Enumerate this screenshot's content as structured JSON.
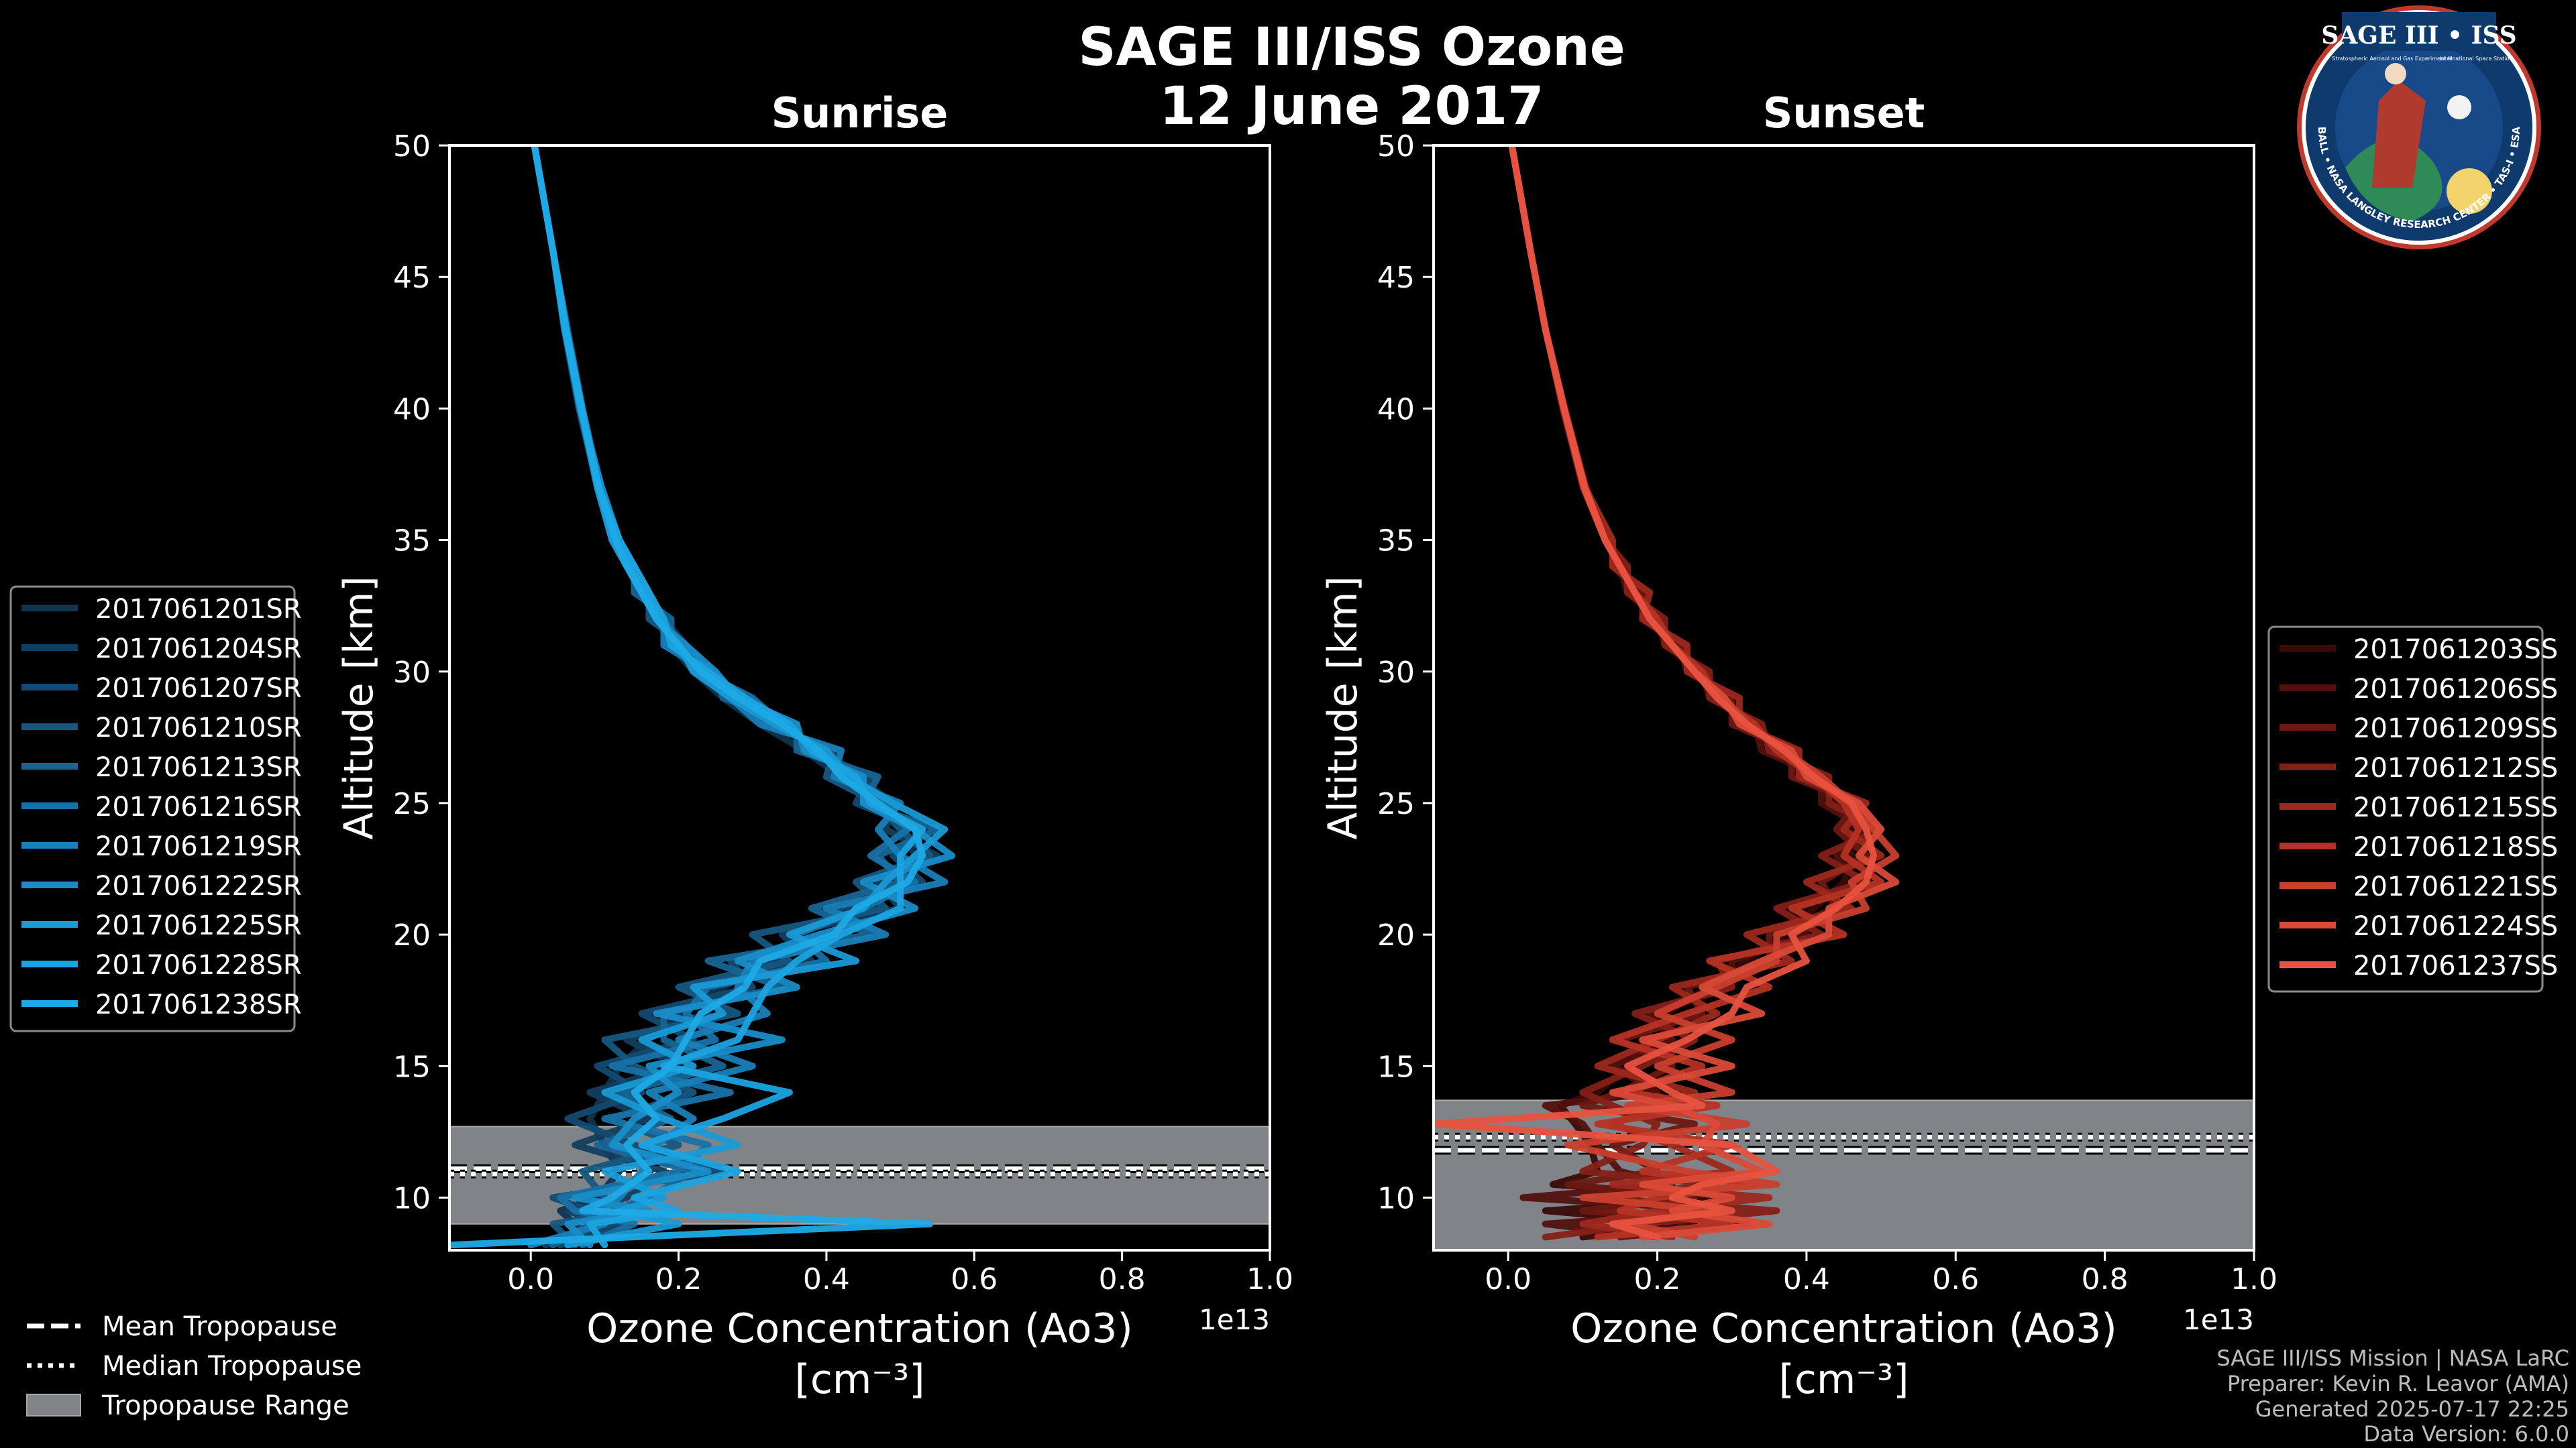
{
  "figure": {
    "title_line1": "SAGE III/ISS Ozone",
    "title_line2": "12 June 2017",
    "footer": [
      "SAGE III/ISS Mission | NASA LaRC",
      "Preparer: Kevin R. Leavor (AMA)",
      "Generated 2025-07-17 22:25",
      "Data Version: 6.0.0"
    ],
    "logo": {
      "title": "SAGE III • ISS",
      "subtitle": "Stratospheric Aerosol and Gas Experiment III",
      "right_text": "International Space Station",
      "ring_text": "BALL • NASA LANGLEY RESEARCH CENTER • TAS-I • ESA"
    },
    "common_legend": [
      {
        "label": "Mean Tropopause",
        "style": "dashed"
      },
      {
        "label": "Median Tropopause",
        "style": "dotted"
      },
      {
        "label": "Tropopause Range",
        "style": "patch"
      }
    ],
    "colors": {
      "background": "#000000",
      "tropopause_band": "#808387",
      "sunrise_base": "#1a9ad6",
      "sunset_base": "#e8523f"
    }
  },
  "chart_data": [
    {
      "type": "line",
      "title": "Sunrise",
      "xlabel": "Ozone Concentration (Ao3)",
      "xlabel_units": "[cm⁻³]",
      "x_offset_label": "1e13",
      "ylabel": "Altitude [km]",
      "xlim": [
        -0.11,
        1.0
      ],
      "ylim": [
        8,
        50
      ],
      "xticks": [
        0.0,
        0.2,
        0.4,
        0.6,
        0.8,
        1.0
      ],
      "xtick_labels": [
        "0.0",
        "0.2",
        "0.4",
        "0.6",
        "0.8",
        "1.0"
      ],
      "yticks": [
        10,
        15,
        20,
        25,
        30,
        35,
        40,
        45,
        50
      ],
      "tropopause": {
        "mean": 11.1,
        "median": 10.9,
        "min": 9.0,
        "max": 12.7
      },
      "legend": [
        "2017061201SR",
        "2017061204SR",
        "2017061207SR",
        "2017061210SR",
        "2017061213SR",
        "2017061216SR",
        "2017061219SR",
        "2017061222SR",
        "2017061225SR",
        "2017061228SR",
        "2017061238SR"
      ],
      "series_colors": [
        "#0f3550",
        "#113e5e",
        "#134a70",
        "#155781",
        "#166594",
        "#1772a6",
        "#1880b8",
        "#198dc8",
        "#1a9ad6",
        "#1ba3e0",
        "#1eaae6"
      ],
      "altitudes": [
        8.2,
        9,
        9.5,
        10,
        11,
        12,
        13,
        14,
        15,
        16,
        17,
        18,
        19,
        20,
        21,
        22,
        23,
        24,
        25,
        26,
        27,
        28,
        29,
        30,
        31,
        32,
        33,
        34,
        35,
        37,
        40,
        43,
        46,
        50
      ],
      "series": [
        {
          "name": "2017061201SR",
          "values": [
            0.05,
            0.06,
            0.04,
            0.09,
            0.12,
            0.1,
            0.08,
            0.1,
            0.12,
            0.16,
            0.2,
            0.26,
            0.33,
            0.4,
            0.46,
            0.5,
            0.52,
            0.5,
            0.46,
            0.42,
            0.37,
            0.31,
            0.26,
            0.22,
            0.19,
            0.17,
            0.15,
            0.13,
            0.11,
            0.09,
            0.065,
            0.045,
            0.03,
            0.005
          ]
        },
        {
          "name": "2017061204SR",
          "values": [
            0.02,
            0.1,
            0.05,
            0.13,
            0.18,
            0.06,
            0.16,
            0.08,
            0.2,
            0.13,
            0.24,
            0.22,
            0.38,
            0.34,
            0.5,
            0.47,
            0.55,
            0.48,
            0.49,
            0.44,
            0.4,
            0.33,
            0.28,
            0.24,
            0.21,
            0.18,
            0.16,
            0.14,
            0.12,
            0.095,
            0.07,
            0.05,
            0.03,
            0.005
          ]
        },
        {
          "name": "2017061207SR",
          "values": [
            0.04,
            0.12,
            0.08,
            0.03,
            0.26,
            0.14,
            0.05,
            0.15,
            0.09,
            0.22,
            0.15,
            0.3,
            0.27,
            0.43,
            0.42,
            0.53,
            0.49,
            0.53,
            0.44,
            0.46,
            0.38,
            0.35,
            0.27,
            0.23,
            0.2,
            0.17,
            0.15,
            0.13,
            0.11,
            0.09,
            0.068,
            0.047,
            0.03,
            0.005
          ]
        },
        {
          "name": "2017061210SR",
          "values": [
            0.06,
            0.03,
            0.14,
            0.1,
            0.07,
            0.2,
            0.11,
            0.22,
            0.14,
            0.1,
            0.28,
            0.2,
            0.35,
            0.3,
            0.48,
            0.44,
            0.54,
            0.5,
            0.47,
            0.4,
            0.41,
            0.32,
            0.29,
            0.22,
            0.21,
            0.16,
            0.16,
            0.13,
            0.12,
            0.092,
            0.069,
            0.048,
            0.03,
            0.005
          ]
        },
        {
          "name": "2017061213SR",
          "values": [
            0.03,
            0.08,
            0.11,
            0.16,
            0.22,
            0.09,
            0.19,
            0.12,
            0.26,
            0.18,
            0.18,
            0.34,
            0.24,
            0.46,
            0.38,
            0.5,
            0.47,
            0.55,
            0.45,
            0.47,
            0.36,
            0.36,
            0.26,
            0.25,
            0.19,
            0.19,
            0.14,
            0.14,
            0.11,
            0.094,
            0.067,
            0.046,
            0.03,
            0.005
          ]
        },
        {
          "name": "2017061216SR",
          "values": [
            0.07,
            0.14,
            0.06,
            0.04,
            0.2,
            0.24,
            0.1,
            0.27,
            0.11,
            0.25,
            0.21,
            0.24,
            0.4,
            0.36,
            0.45,
            0.52,
            0.46,
            0.51,
            0.48,
            0.43,
            0.39,
            0.34,
            0.3,
            0.23,
            0.2,
            0.18,
            0.15,
            0.14,
            0.12,
            0.091,
            0.066,
            0.046,
            0.03,
            0.005
          ]
        },
        {
          "name": "2017061219SR",
          "values": [
            0.0,
            0.1,
            0.09,
            0.12,
            0.15,
            0.17,
            0.22,
            0.16,
            0.3,
            0.2,
            0.32,
            0.28,
            0.3,
            0.48,
            0.4,
            0.56,
            0.5,
            0.47,
            0.5,
            0.41,
            0.42,
            0.31,
            0.27,
            0.24,
            0.18,
            0.18,
            0.15,
            0.13,
            0.11,
            0.093,
            0.07,
            0.049,
            0.03,
            0.005
          ]
        },
        {
          "name": "2017061222SR",
          "values": [
            0.08,
            0.05,
            0.16,
            0.06,
            0.24,
            0.11,
            0.14,
            0.2,
            0.16,
            0.34,
            0.17,
            0.36,
            0.28,
            0.39,
            0.52,
            0.45,
            0.57,
            0.52,
            0.45,
            0.45,
            0.37,
            0.36,
            0.28,
            0.25,
            0.21,
            0.17,
            0.16,
            0.14,
            0.12,
            0.096,
            0.067,
            0.047,
            0.03,
            0.005
          ]
        },
        {
          "name": "2017061225SR",
          "values": [
            0.05,
            0.2,
            0.12,
            0.18,
            0.1,
            0.28,
            0.18,
            0.1,
            0.22,
            0.15,
            0.26,
            0.22,
            0.44,
            0.35,
            0.45,
            0.48,
            0.52,
            0.56,
            0.49,
            0.43,
            0.4,
            0.33,
            0.27,
            0.22,
            0.2,
            0.17,
            0.15,
            0.13,
            0.11,
            0.09,
            0.068,
            0.046,
            0.03,
            0.005
          ]
        },
        {
          "name": "2017061228SR",
          "values": [
            0.1,
            0.08,
            0.2,
            0.14,
            0.28,
            0.15,
            0.26,
            0.35,
            0.18,
            0.28,
            0.3,
            0.32,
            0.36,
            0.42,
            0.5,
            0.5,
            0.5,
            0.53,
            0.46,
            0.44,
            0.38,
            0.35,
            0.29,
            0.24,
            0.19,
            0.18,
            0.16,
            0.14,
            0.12,
            0.092,
            0.069,
            0.048,
            0.03,
            0.005
          ]
        },
        {
          "name": "2017061238SR",
          "values": [
            -0.11,
            0.54,
            0.07,
            0.11,
            0.16,
            0.13,
            0.17,
            0.14,
            0.19,
            0.21,
            0.23,
            0.29,
            0.31,
            0.41,
            0.44,
            0.51,
            0.53,
            0.52,
            0.47,
            0.42,
            0.39,
            0.34,
            0.28,
            0.23,
            0.2,
            0.17,
            0.15,
            0.13,
            0.115,
            0.092,
            0.068,
            0.047,
            0.03,
            0.005
          ]
        }
      ]
    },
    {
      "type": "line",
      "title": "Sunset",
      "xlabel": "Ozone Concentration (Ao3)",
      "xlabel_units": "[cm⁻³]",
      "x_offset_label": "1e13",
      "ylabel": "Altitude [km]",
      "xlim": [
        -0.1,
        1.0
      ],
      "ylim": [
        8,
        50
      ],
      "xticks": [
        0.0,
        0.2,
        0.4,
        0.6,
        0.8,
        1.0
      ],
      "xtick_labels": [
        "0.0",
        "0.2",
        "0.4",
        "0.6",
        "0.8",
        "1.0"
      ],
      "yticks": [
        10,
        15,
        20,
        25,
        30,
        35,
        40,
        45,
        50
      ],
      "tropopause": {
        "mean": 11.8,
        "median": 12.3,
        "min": 8.0,
        "max": 13.7
      },
      "legend": [
        "2017061203SS",
        "2017061206SS",
        "2017061209SS",
        "2017061212SS",
        "2017061215SS",
        "2017061218SS",
        "2017061221SS",
        "2017061224SS",
        "2017061237SS"
      ],
      "series_colors": [
        "#3a0a08",
        "#52110d",
        "#6b1812",
        "#842017",
        "#9d281d",
        "#b53324",
        "#c93f2e",
        "#da4a38",
        "#e8523f"
      ],
      "altitudes": [
        8.5,
        9,
        9.5,
        10,
        10.5,
        11,
        12,
        12.8,
        13.5,
        14,
        15,
        16,
        17,
        18,
        19,
        20,
        21,
        22,
        23,
        24,
        25,
        26,
        27,
        28,
        29,
        30,
        31,
        32,
        33,
        34,
        35,
        37,
        40,
        43,
        46,
        50
      ],
      "series": [
        {
          "name": "2017061203SS",
          "values": [
            0.1,
            0.25,
            0.05,
            0.3,
            0.06,
            0.12,
            0.11,
            0.09,
            0.07,
            0.12,
            0.16,
            0.18,
            0.21,
            0.27,
            0.32,
            0.37,
            0.41,
            0.45,
            0.46,
            0.46,
            0.44,
            0.4,
            0.36,
            0.32,
            0.28,
            0.25,
            0.22,
            0.19,
            0.17,
            0.15,
            0.13,
            0.105,
            0.075,
            0.05,
            0.03,
            0.005
          ]
        },
        {
          "name": "2017061206SS",
          "values": [
            0.2,
            0.05,
            0.3,
            0.02,
            0.22,
            0.15,
            0.12,
            0.1,
            0.05,
            0.2,
            0.14,
            0.22,
            0.19,
            0.3,
            0.3,
            0.4,
            0.39,
            0.47,
            0.44,
            0.48,
            0.42,
            0.42,
            0.34,
            0.33,
            0.27,
            0.26,
            0.21,
            0.2,
            0.16,
            0.15,
            0.13,
            0.1,
            0.073,
            0.05,
            0.03,
            0.005
          ]
        },
        {
          "name": "2017061209SS",
          "values": [
            0.15,
            0.32,
            0.1,
            0.25,
            0.08,
            0.2,
            0.14,
            0.25,
            0.1,
            0.15,
            0.22,
            0.15,
            0.26,
            0.24,
            0.35,
            0.35,
            0.44,
            0.42,
            0.48,
            0.44,
            0.47,
            0.38,
            0.38,
            0.3,
            0.3,
            0.24,
            0.23,
            0.18,
            0.18,
            0.14,
            0.14,
            0.102,
            0.074,
            0.05,
            0.03,
            0.005
          ]
        },
        {
          "name": "2017061212SS",
          "values": [
            0.05,
            0.18,
            0.36,
            0.12,
            0.28,
            0.1,
            0.18,
            0.2,
            0.14,
            0.1,
            0.18,
            0.25,
            0.17,
            0.3,
            0.28,
            0.42,
            0.36,
            0.48,
            0.42,
            0.5,
            0.43,
            0.43,
            0.35,
            0.34,
            0.27,
            0.27,
            0.21,
            0.21,
            0.16,
            0.16,
            0.13,
            0.104,
            0.076,
            0.05,
            0.03,
            0.005
          ]
        },
        {
          "name": "2017061215SS",
          "values": [
            0.22,
            0.1,
            0.2,
            0.35,
            0.14,
            0.3,
            0.22,
            0.14,
            0.2,
            0.25,
            0.12,
            0.2,
            0.28,
            0.22,
            0.38,
            0.32,
            0.46,
            0.4,
            0.5,
            0.45,
            0.48,
            0.39,
            0.39,
            0.31,
            0.31,
            0.24,
            0.24,
            0.18,
            0.19,
            0.14,
            0.14,
            0.103,
            0.075,
            0.05,
            0.03,
            0.005
          ]
        },
        {
          "name": "2017061218SS",
          "values": [
            0.12,
            0.3,
            0.15,
            0.2,
            0.33,
            0.18,
            0.3,
            0.12,
            0.28,
            0.16,
            0.26,
            0.14,
            0.24,
            0.35,
            0.27,
            0.45,
            0.38,
            0.5,
            0.45,
            0.47,
            0.45,
            0.41,
            0.36,
            0.33,
            0.28,
            0.26,
            0.22,
            0.2,
            0.17,
            0.15,
            0.13,
            0.101,
            0.074,
            0.05,
            0.03,
            0.005
          ]
        },
        {
          "name": "2017061221SS",
          "values": [
            0.25,
            0.16,
            0.28,
            0.1,
            0.36,
            0.24,
            0.08,
            0.32,
            0.16,
            0.3,
            0.2,
            0.3,
            0.2,
            0.28,
            0.36,
            0.36,
            0.48,
            0.46,
            0.52,
            0.49,
            0.46,
            0.42,
            0.37,
            0.32,
            0.29,
            0.25,
            0.22,
            0.19,
            0.17,
            0.15,
            0.13,
            0.102,
            0.075,
            0.05,
            0.03,
            0.005
          ]
        },
        {
          "name": "2017061224SS",
          "values": [
            0.18,
            0.35,
            0.22,
            0.3,
            0.18,
            0.34,
            0.26,
            0.28,
            0.22,
            0.14,
            0.3,
            0.18,
            0.34,
            0.26,
            0.34,
            0.43,
            0.43,
            0.52,
            0.47,
            0.5,
            0.47,
            0.4,
            0.38,
            0.31,
            0.29,
            0.25,
            0.22,
            0.19,
            0.17,
            0.15,
            0.13,
            0.103,
            0.075,
            0.05,
            0.03,
            0.005
          ]
        },
        {
          "name": "2017061237SS",
          "values": [
            0.2,
            0.14,
            0.3,
            0.22,
            0.26,
            0.36,
            0.3,
            -0.1,
            0.26,
            0.22,
            0.16,
            0.24,
            0.3,
            0.32,
            0.4,
            0.38,
            0.44,
            0.48,
            0.49,
            0.48,
            0.46,
            0.41,
            0.37,
            0.32,
            0.28,
            0.25,
            0.22,
            0.19,
            0.17,
            0.15,
            0.13,
            0.102,
            0.075,
            0.05,
            0.03,
            0.005
          ]
        }
      ]
    }
  ]
}
